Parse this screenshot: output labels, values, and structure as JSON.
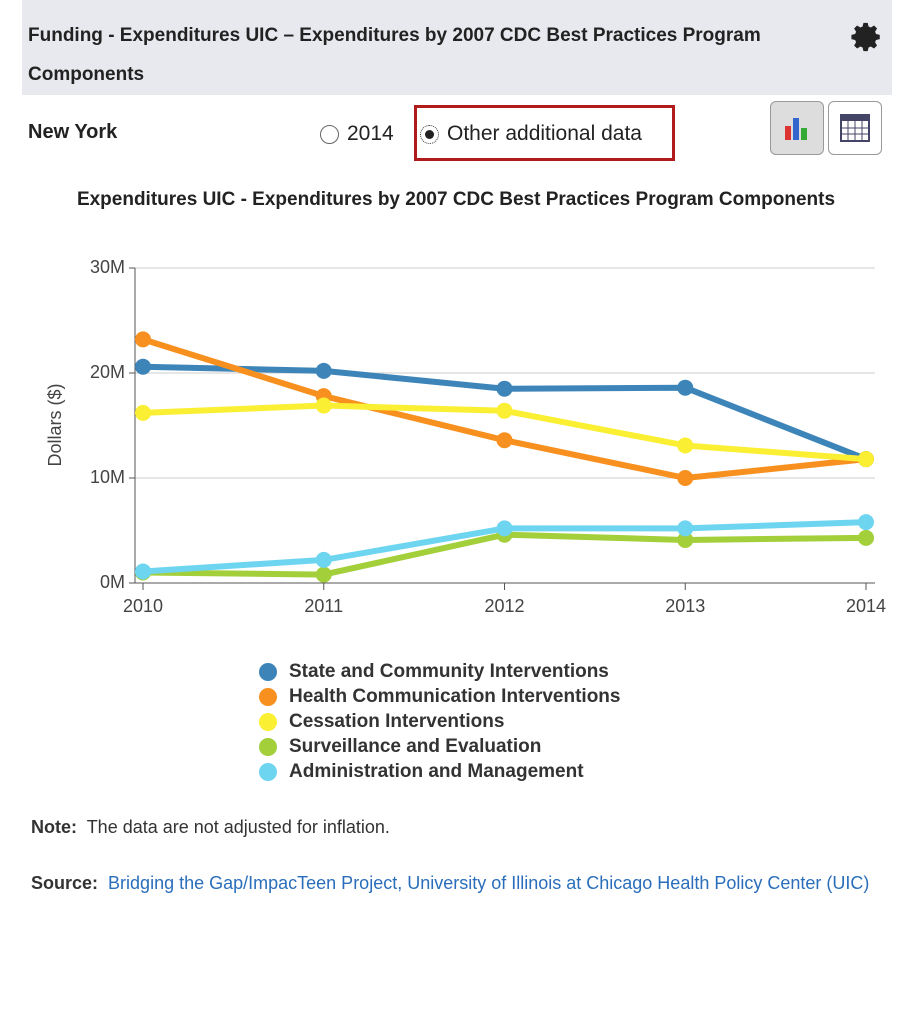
{
  "header": {
    "title": "Funding - Expenditures UIC – Expenditures by 2007 CDC Best Practices Program Components"
  },
  "controls": {
    "location": "New York",
    "options": [
      "2014",
      "Other additional data"
    ]
  },
  "chart_data": {
    "type": "line",
    "title": "Expenditures UIC - Expenditures by 2007 CDC Best Practices Program Components",
    "y_label": "Dollars ($)",
    "x": [
      2010,
      2011,
      2012,
      2013,
      2014
    ],
    "xlim": [
      2010,
      2014
    ],
    "xticks": [
      2010,
      2011,
      2012,
      2013,
      2014
    ],
    "ylim": [
      0,
      30000000
    ],
    "yticks": [
      {
        "value": 0,
        "label": "0M"
      },
      {
        "value": 10000000,
        "label": "10M"
      },
      {
        "value": 20000000,
        "label": "20M"
      },
      {
        "value": 30000000,
        "label": "30M"
      }
    ],
    "grid": true,
    "series": [
      {
        "name": "State and Community Interventions",
        "color": "#3d85b8",
        "values": [
          20600000,
          20200000,
          18500000,
          18600000,
          11800000
        ]
      },
      {
        "name": "Health Communication Interventions",
        "color": "#f7901e",
        "values": [
          23200000,
          17800000,
          13600000,
          10000000,
          11800000
        ]
      },
      {
        "name": "Cessation Interventions",
        "color": "#fbef33",
        "values": [
          16200000,
          16900000,
          16400000,
          13100000,
          11800000
        ]
      },
      {
        "name": "Surveillance and Evaluation",
        "color": "#a3cf3a",
        "values": [
          1000000,
          800000,
          4600000,
          4100000,
          4300000
        ]
      },
      {
        "name": "Administration and Management",
        "color": "#6dd5f0",
        "values": [
          1100000,
          2200000,
          5200000,
          5200000,
          5800000
        ]
      }
    ]
  },
  "note": {
    "label": "Note:",
    "text": "The data are not adjusted for inflation."
  },
  "source": {
    "label": "Source:",
    "text": "Bridging the Gap/ImpacTeen Project, University of Illinois at Chicago Health Policy Center (UIC)"
  }
}
